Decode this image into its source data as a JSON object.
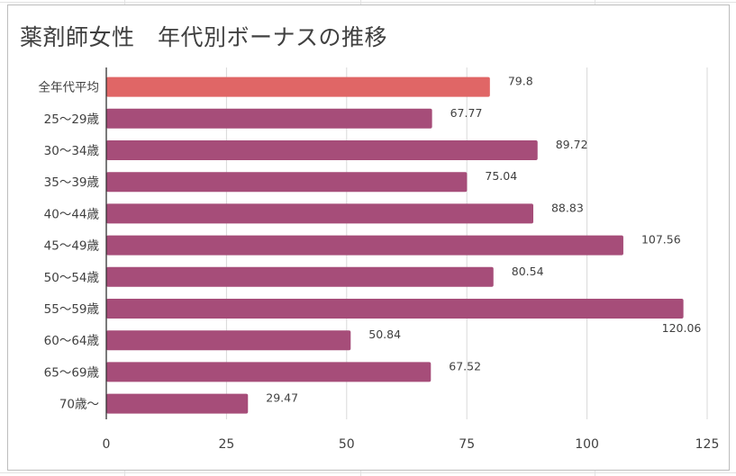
{
  "chart_data": {
    "type": "bar",
    "orientation": "horizontal",
    "title": "薬剤師女性　年代別ボーナスの推移",
    "categories": [
      "全年代平均",
      "25～29歳",
      "30～34歳",
      "35～39歳",
      "40～44歳",
      "45～49歳",
      "50～54歳",
      "55～59歳",
      "60～64歳",
      "65～69歳",
      "70歳～"
    ],
    "values": [
      79.8,
      67.77,
      89.72,
      75.04,
      88.83,
      107.56,
      80.54,
      120.06,
      50.84,
      67.52,
      29.47
    ],
    "value_labels": [
      "79.8",
      "67.77",
      "89.72",
      "75.04",
      "88.83",
      "107.56",
      "80.54",
      "120.06",
      "50.84",
      "67.52",
      "29.47"
    ],
    "bar_colors": [
      "#e06666",
      "#a64d79",
      "#a64d79",
      "#a64d79",
      "#a64d79",
      "#a64d79",
      "#a64d79",
      "#a64d79",
      "#a64d79",
      "#a64d79",
      "#a64d79"
    ],
    "xlim": [
      0,
      125
    ],
    "x_ticks": [
      "0",
      "25",
      "50",
      "75",
      "100",
      "125"
    ],
    "xlabel": "",
    "ylabel": "",
    "grid": true,
    "legend": "none"
  }
}
